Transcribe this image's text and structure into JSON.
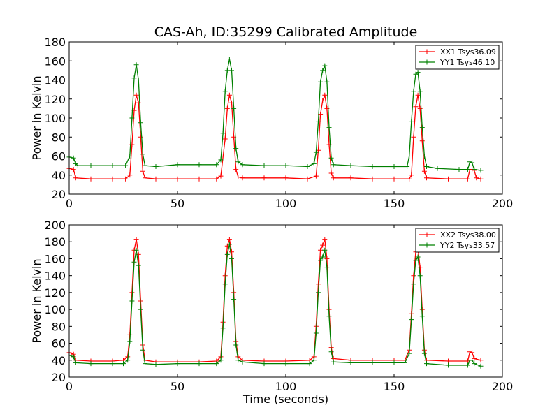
{
  "figure": {
    "title": "CAS-Ah, ID:35299 Calibrated Amplitude",
    "xlabel": "Time (seconds)"
  },
  "colors": {
    "xx": "#ff0000",
    "yy": "#008000"
  },
  "chart_data": [
    {
      "type": "line",
      "title": "CAS-Ah, ID:35299 Calibrated Amplitude",
      "xlabel": "",
      "ylabel": "Power in Kelvin",
      "xlim": [
        0,
        200
      ],
      "ylim": [
        20,
        180
      ],
      "xticks": [
        0,
        50,
        100,
        150,
        200
      ],
      "yticks": [
        20,
        40,
        60,
        80,
        100,
        120,
        140,
        160,
        180
      ],
      "grid": false,
      "legend": "top-right",
      "series": [
        {
          "name": "XX1 Tsys36.09",
          "color": "#ff0000",
          "marker": "+",
          "points": [
            [
              0,
              47
            ],
            [
              2,
              46
            ],
            [
              3,
              37
            ],
            [
              10,
              36
            ],
            [
              20,
              36
            ],
            [
              26,
              36
            ],
            [
              28,
              40
            ],
            [
              29,
              72
            ],
            [
              30,
              108
            ],
            [
              31,
              124
            ],
            [
              32,
              116
            ],
            [
              33,
              80
            ],
            [
              34,
              44
            ],
            [
              35,
              37
            ],
            [
              40,
              36
            ],
            [
              50,
              36
            ],
            [
              60,
              36
            ],
            [
              68,
              36
            ],
            [
              70,
              39
            ],
            [
              72,
              78
            ],
            [
              73,
              110
            ],
            [
              74,
              124
            ],
            [
              75,
              116
            ],
            [
              76,
              80
            ],
            [
              77,
              46
            ],
            [
              78,
              38
            ],
            [
              80,
              37
            ],
            [
              90,
              37
            ],
            [
              100,
              37
            ],
            [
              110,
              36
            ],
            [
              114,
              39
            ],
            [
              115,
              66
            ],
            [
              116,
              104
            ],
            [
              117,
              118
            ],
            [
              118,
              124
            ],
            [
              119,
              110
            ],
            [
              120,
              72
            ],
            [
              121,
              42
            ],
            [
              122,
              37
            ],
            [
              130,
              37
            ],
            [
              140,
              36
            ],
            [
              150,
              36
            ],
            [
              157,
              36
            ],
            [
              158,
              40
            ],
            [
              159,
              80
            ],
            [
              160,
              112
            ],
            [
              161,
              124
            ],
            [
              162,
              110
            ],
            [
              163,
              76
            ],
            [
              164,
              44
            ],
            [
              165,
              37
            ],
            [
              175,
              36
            ],
            [
              184,
              36
            ],
            [
              185,
              46
            ],
            [
              186,
              46
            ],
            [
              187,
              45
            ],
            [
              188,
              37
            ],
            [
              190,
              36
            ]
          ]
        },
        {
          "name": "YY1 Tsys46.10",
          "color": "#008000",
          "marker": "+",
          "points": [
            [
              0,
              59
            ],
            [
              2,
              58
            ],
            [
              3,
              52
            ],
            [
              4,
              50
            ],
            [
              10,
              50
            ],
            [
              20,
              50
            ],
            [
              26,
              50
            ],
            [
              28,
              60
            ],
            [
              29,
              100
            ],
            [
              30,
              142
            ],
            [
              31,
              156
            ],
            [
              32,
              140
            ],
            [
              33,
              95
            ],
            [
              34,
              62
            ],
            [
              35,
              50
            ],
            [
              40,
              49
            ],
            [
              50,
              51
            ],
            [
              60,
              51
            ],
            [
              68,
              51
            ],
            [
              70,
              56
            ],
            [
              71,
              84
            ],
            [
              72,
              128
            ],
            [
              73,
              150
            ],
            [
              74,
              162
            ],
            [
              75,
              150
            ],
            [
              76,
              110
            ],
            [
              77,
              68
            ],
            [
              78,
              54
            ],
            [
              80,
              51
            ],
            [
              90,
              50
            ],
            [
              100,
              50
            ],
            [
              110,
              49
            ],
            [
              113,
              52
            ],
            [
              114,
              64
            ],
            [
              115,
              96
            ],
            [
              116,
              138
            ],
            [
              117,
              150
            ],
            [
              118,
              155
            ],
            [
              119,
              138
            ],
            [
              120,
              90
            ],
            [
              121,
              58
            ],
            [
              122,
              51
            ],
            [
              130,
              50
            ],
            [
              140,
              49
            ],
            [
              150,
              49
            ],
            [
              156,
              49
            ],
            [
              157,
              60
            ],
            [
              158,
              96
            ],
            [
              159,
              128
            ],
            [
              160,
              146
            ],
            [
              161,
              148
            ],
            [
              162,
              128
            ],
            [
              163,
              90
            ],
            [
              164,
              60
            ],
            [
              165,
              49
            ],
            [
              170,
              47
            ],
            [
              180,
              46
            ],
            [
              184,
              46
            ],
            [
              185,
              54
            ],
            [
              186,
              53
            ],
            [
              187,
              46
            ],
            [
              190,
              45
            ]
          ]
        }
      ]
    },
    {
      "type": "line",
      "title": "",
      "xlabel": "Time (seconds)",
      "ylabel": "Power in Kelvin",
      "xlim": [
        0,
        200
      ],
      "ylim": [
        20,
        200
      ],
      "xticks": [
        0,
        50,
        100,
        150,
        200
      ],
      "yticks": [
        20,
        40,
        60,
        80,
        100,
        120,
        140,
        160,
        180,
        200
      ],
      "grid": false,
      "legend": "top-right",
      "series": [
        {
          "name": "XX2 Tsys38.00",
          "color": "#ff0000",
          "marker": "+",
          "points": [
            [
              0,
              49
            ],
            [
              2,
              47
            ],
            [
              3,
              40
            ],
            [
              10,
              39
            ],
            [
              20,
              39
            ],
            [
              25,
              40
            ],
            [
              27,
              44
            ],
            [
              28,
              70
            ],
            [
              29,
              120
            ],
            [
              30,
              170
            ],
            [
              31,
              183
            ],
            [
              32,
              165
            ],
            [
              33,
              110
            ],
            [
              34,
              58
            ],
            [
              35,
              40
            ],
            [
              40,
              38
            ],
            [
              50,
              38
            ],
            [
              60,
              38
            ],
            [
              68,
              39
            ],
            [
              70,
              44
            ],
            [
              71,
              85
            ],
            [
              72,
              140
            ],
            [
              73,
              175
            ],
            [
              74,
              183
            ],
            [
              75,
              168
            ],
            [
              76,
              120
            ],
            [
              77,
              62
            ],
            [
              78,
              44
            ],
            [
              80,
              40
            ],
            [
              90,
              39
            ],
            [
              100,
              39
            ],
            [
              111,
              40
            ],
            [
              113,
              44
            ],
            [
              114,
              80
            ],
            [
              115,
              130
            ],
            [
              116,
              170
            ],
            [
              117,
              176
            ],
            [
              118,
              183
            ],
            [
              119,
              160
            ],
            [
              120,
              100
            ],
            [
              121,
              55
            ],
            [
              122,
              42
            ],
            [
              130,
              40
            ],
            [
              140,
              40
            ],
            [
              150,
              40
            ],
            [
              155,
              40
            ],
            [
              157,
              52
            ],
            [
              158,
              95
            ],
            [
              159,
              140
            ],
            [
              160,
              168
            ],
            [
              161,
              172
            ],
            [
              162,
              150
            ],
            [
              163,
              100
            ],
            [
              164,
              52
            ],
            [
              165,
              40
            ],
            [
              175,
              39
            ],
            [
              184,
              39
            ],
            [
              185,
              50
            ],
            [
              186,
              49
            ],
            [
              187,
              42
            ],
            [
              190,
              40
            ]
          ]
        },
        {
          "name": "YY2 Tsys33.57",
          "color": "#008000",
          "marker": "+",
          "points": [
            [
              0,
              46
            ],
            [
              2,
              44
            ],
            [
              3,
              37
            ],
            [
              10,
              36
            ],
            [
              20,
              36
            ],
            [
              25,
              36
            ],
            [
              27,
              40
            ],
            [
              28,
              62
            ],
            [
              29,
              110
            ],
            [
              30,
              156
            ],
            [
              31,
              170
            ],
            [
              32,
              152
            ],
            [
              33,
              100
            ],
            [
              34,
              52
            ],
            [
              35,
              36
            ],
            [
              40,
              35
            ],
            [
              50,
              36
            ],
            [
              60,
              36
            ],
            [
              68,
              36
            ],
            [
              70,
              40
            ],
            [
              71,
              78
            ],
            [
              72,
              130
            ],
            [
              73,
              165
            ],
            [
              74,
              177
            ],
            [
              75,
              160
            ],
            [
              76,
              112
            ],
            [
              77,
              58
            ],
            [
              78,
              40
            ],
            [
              80,
              38
            ],
            [
              90,
              36
            ],
            [
              100,
              36
            ],
            [
              111,
              36
            ],
            [
              113,
              40
            ],
            [
              114,
              72
            ],
            [
              115,
              120
            ],
            [
              116,
              158
            ],
            [
              117,
              162
            ],
            [
              118,
              170
            ],
            [
              119,
              150
            ],
            [
              120,
              92
            ],
            [
              121,
              50
            ],
            [
              122,
              38
            ],
            [
              130,
              37
            ],
            [
              140,
              37
            ],
            [
              150,
              37
            ],
            [
              155,
              37
            ],
            [
              157,
              48
            ],
            [
              158,
              88
            ],
            [
              159,
              130
            ],
            [
              160,
              158
            ],
            [
              161,
              162
            ],
            [
              162,
              140
            ],
            [
              163,
              92
            ],
            [
              164,
              48
            ],
            [
              165,
              36
            ],
            [
              175,
              34
            ],
            [
              184,
              34
            ],
            [
              185,
              40
            ],
            [
              186,
              40
            ],
            [
              187,
              36
            ],
            [
              190,
              33
            ]
          ]
        }
      ]
    }
  ]
}
